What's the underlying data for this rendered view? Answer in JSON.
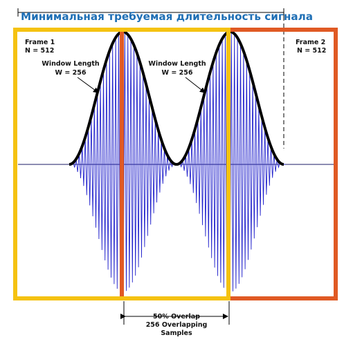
{
  "title": "Минимальная требуемая длительность сигнала",
  "frame1": {
    "name": "Frame 1",
    "samples": "N = 512"
  },
  "frame2": {
    "name": "Frame 2",
    "samples": "N = 512"
  },
  "window1": {
    "name": "Window Length",
    "samples": "W = 256"
  },
  "window2": {
    "name": "Window Length",
    "samples": "W = 256"
  },
  "overlap": {
    "line1": "50% Overlap",
    "line2": "256 Overlapping",
    "line3": "Samples"
  },
  "colors": {
    "frame1": "#f5c211",
    "frame2": "#e05a24",
    "signal": "#2222cc",
    "envelope": "#000000",
    "title": "#1f6fb5"
  }
}
